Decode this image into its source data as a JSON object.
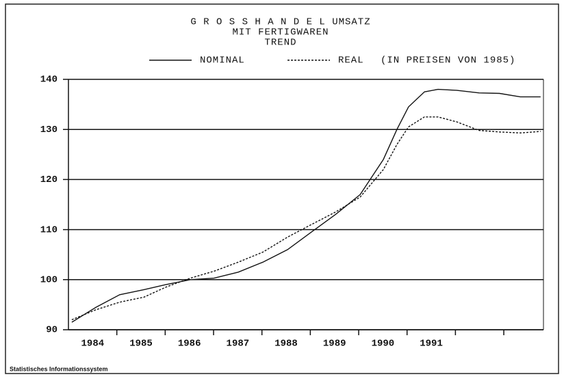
{
  "chart_data": {
    "type": "line",
    "title": "G R O S S H A N D E L   UMSATZ",
    "subtitle": [
      "MIT FERTIGWAREN",
      "TREND"
    ],
    "note": "(IN PREISEN VON 1985)",
    "footer": "Statistisches Informationssystem",
    "xlim": [
      1984,
      1993.82
    ],
    "xticks": [
      {
        "value": 1984.5,
        "label": "1984"
      },
      {
        "value": 1985.5,
        "label": "1985"
      },
      {
        "value": 1986.5,
        "label": "1986"
      },
      {
        "value": 1987.5,
        "label": "1987"
      },
      {
        "value": 1988.5,
        "label": "1988"
      },
      {
        "value": 1989.5,
        "label": "1989"
      },
      {
        "value": 1990.5,
        "label": "1990"
      },
      {
        "value": 1991.5,
        "label": "1991"
      }
    ],
    "xtick_marks": [
      1985,
      1986,
      1987,
      1988,
      1989,
      1990,
      1991,
      1992,
      1993
    ],
    "ylim": [
      90,
      140
    ],
    "yticks": [
      90,
      100,
      110,
      120,
      130,
      140
    ],
    "grid": true,
    "x": [
      1984.07,
      1984.57,
      1985.06,
      1985.56,
      1986.01,
      1986.52,
      1987.01,
      1987.51,
      1988.02,
      1988.53,
      1989.02,
      1989.52,
      1990.03,
      1990.51,
      1990.79,
      1991.03,
      1991.36,
      1991.64,
      1992.03,
      1992.49,
      1992.91,
      1993.34,
      1993.76
    ],
    "series": [
      {
        "name": "NOMINAL",
        "color": "#111111",
        "dash": "solid",
        "values": [
          91.5,
          94.5,
          97,
          98,
          99,
          100,
          100.3,
          101.5,
          103.5,
          106,
          109.5,
          113,
          117,
          124,
          130,
          134.5,
          137.5,
          138,
          137.8,
          137.3,
          137.2,
          136.5,
          136.5
        ]
      },
      {
        "name": "REAL",
        "color": "#111111",
        "dash": "dashed",
        "values": [
          92,
          94,
          95.5,
          96.5,
          98.5,
          100.3,
          101.7,
          103.5,
          105.5,
          108.5,
          111,
          113.5,
          116.5,
          122,
          127,
          130.5,
          132.5,
          132.5,
          131.5,
          129.8,
          129.5,
          129.3,
          129.6
        ]
      }
    ]
  }
}
